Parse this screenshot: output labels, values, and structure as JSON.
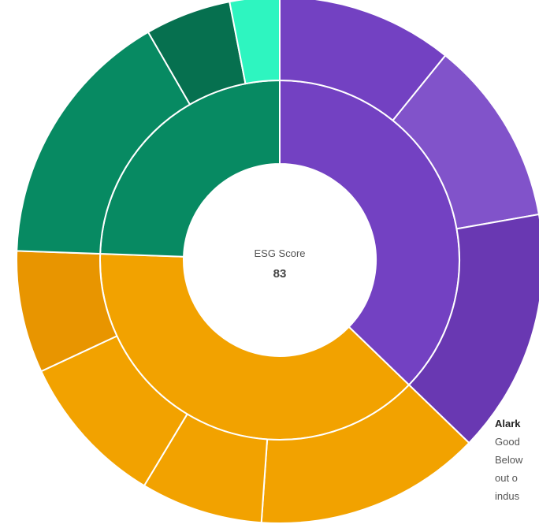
{
  "chart_data": {
    "type": "sunburst",
    "center_label": "ESG Score",
    "center_value": 83,
    "rings": [
      {
        "values": [
          134,
          138,
          88
        ],
        "colors": [
          "#7341c2",
          "#f2a200",
          "#078a62"
        ]
      },
      {
        "values": [
          39,
          41,
          54,
          50,
          27,
          34,
          27,
          58,
          19,
          11
        ],
        "colors": [
          "#7341c2",
          "#8153ca",
          "#6938b2",
          "#f2a200",
          "#f2a200",
          "#f2a200",
          "#e89500",
          "#078a62",
          "#06704f",
          "#2ef5c0"
        ]
      }
    ]
  },
  "side_text": [
    "Alark",
    "Good",
    "Below",
    "out o",
    "indus"
  ]
}
